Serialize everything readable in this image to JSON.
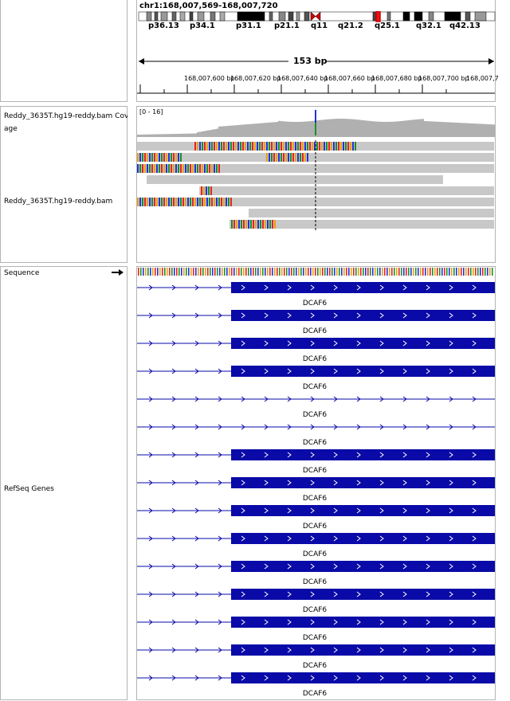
{
  "header": {
    "locus": "chr1:168,007,569-168,007,720",
    "cytobands": [
      "p36.13",
      "p34.1",
      "p31.1",
      "p21.1",
      "q11",
      "q21.2",
      "q25.1",
      "q32.1",
      "q42.13"
    ],
    "span": "153 bp",
    "ruler_ticks": [
      "168,007,600 bp",
      "168,007,620 bp",
      "168,007,640 bp",
      "168,007,660 bp",
      "168,007,680 bp",
      "168,007,700 bp",
      "168,007,7"
    ]
  },
  "tracks": {
    "coverage_name": "Reddy_3635T.hg19-reddy.bam Coverage",
    "coverage_name_line2": "age",
    "coverage_range": "[0 - 16]",
    "alignment_name": "Reddy_3635T.hg19-reddy.bam",
    "sequence_name": "Sequence",
    "genes_name": "RefSeq Genes",
    "gene_symbol": "DCAF6"
  },
  "colors": {
    "gene_blue": "#0a0aa8",
    "coverage_gray": "#b0b0b0",
    "read_gray": "#c8c8c8",
    "centromere": "#cc0000"
  },
  "icons": {
    "sequence_strand": "right-arrow-icon"
  }
}
